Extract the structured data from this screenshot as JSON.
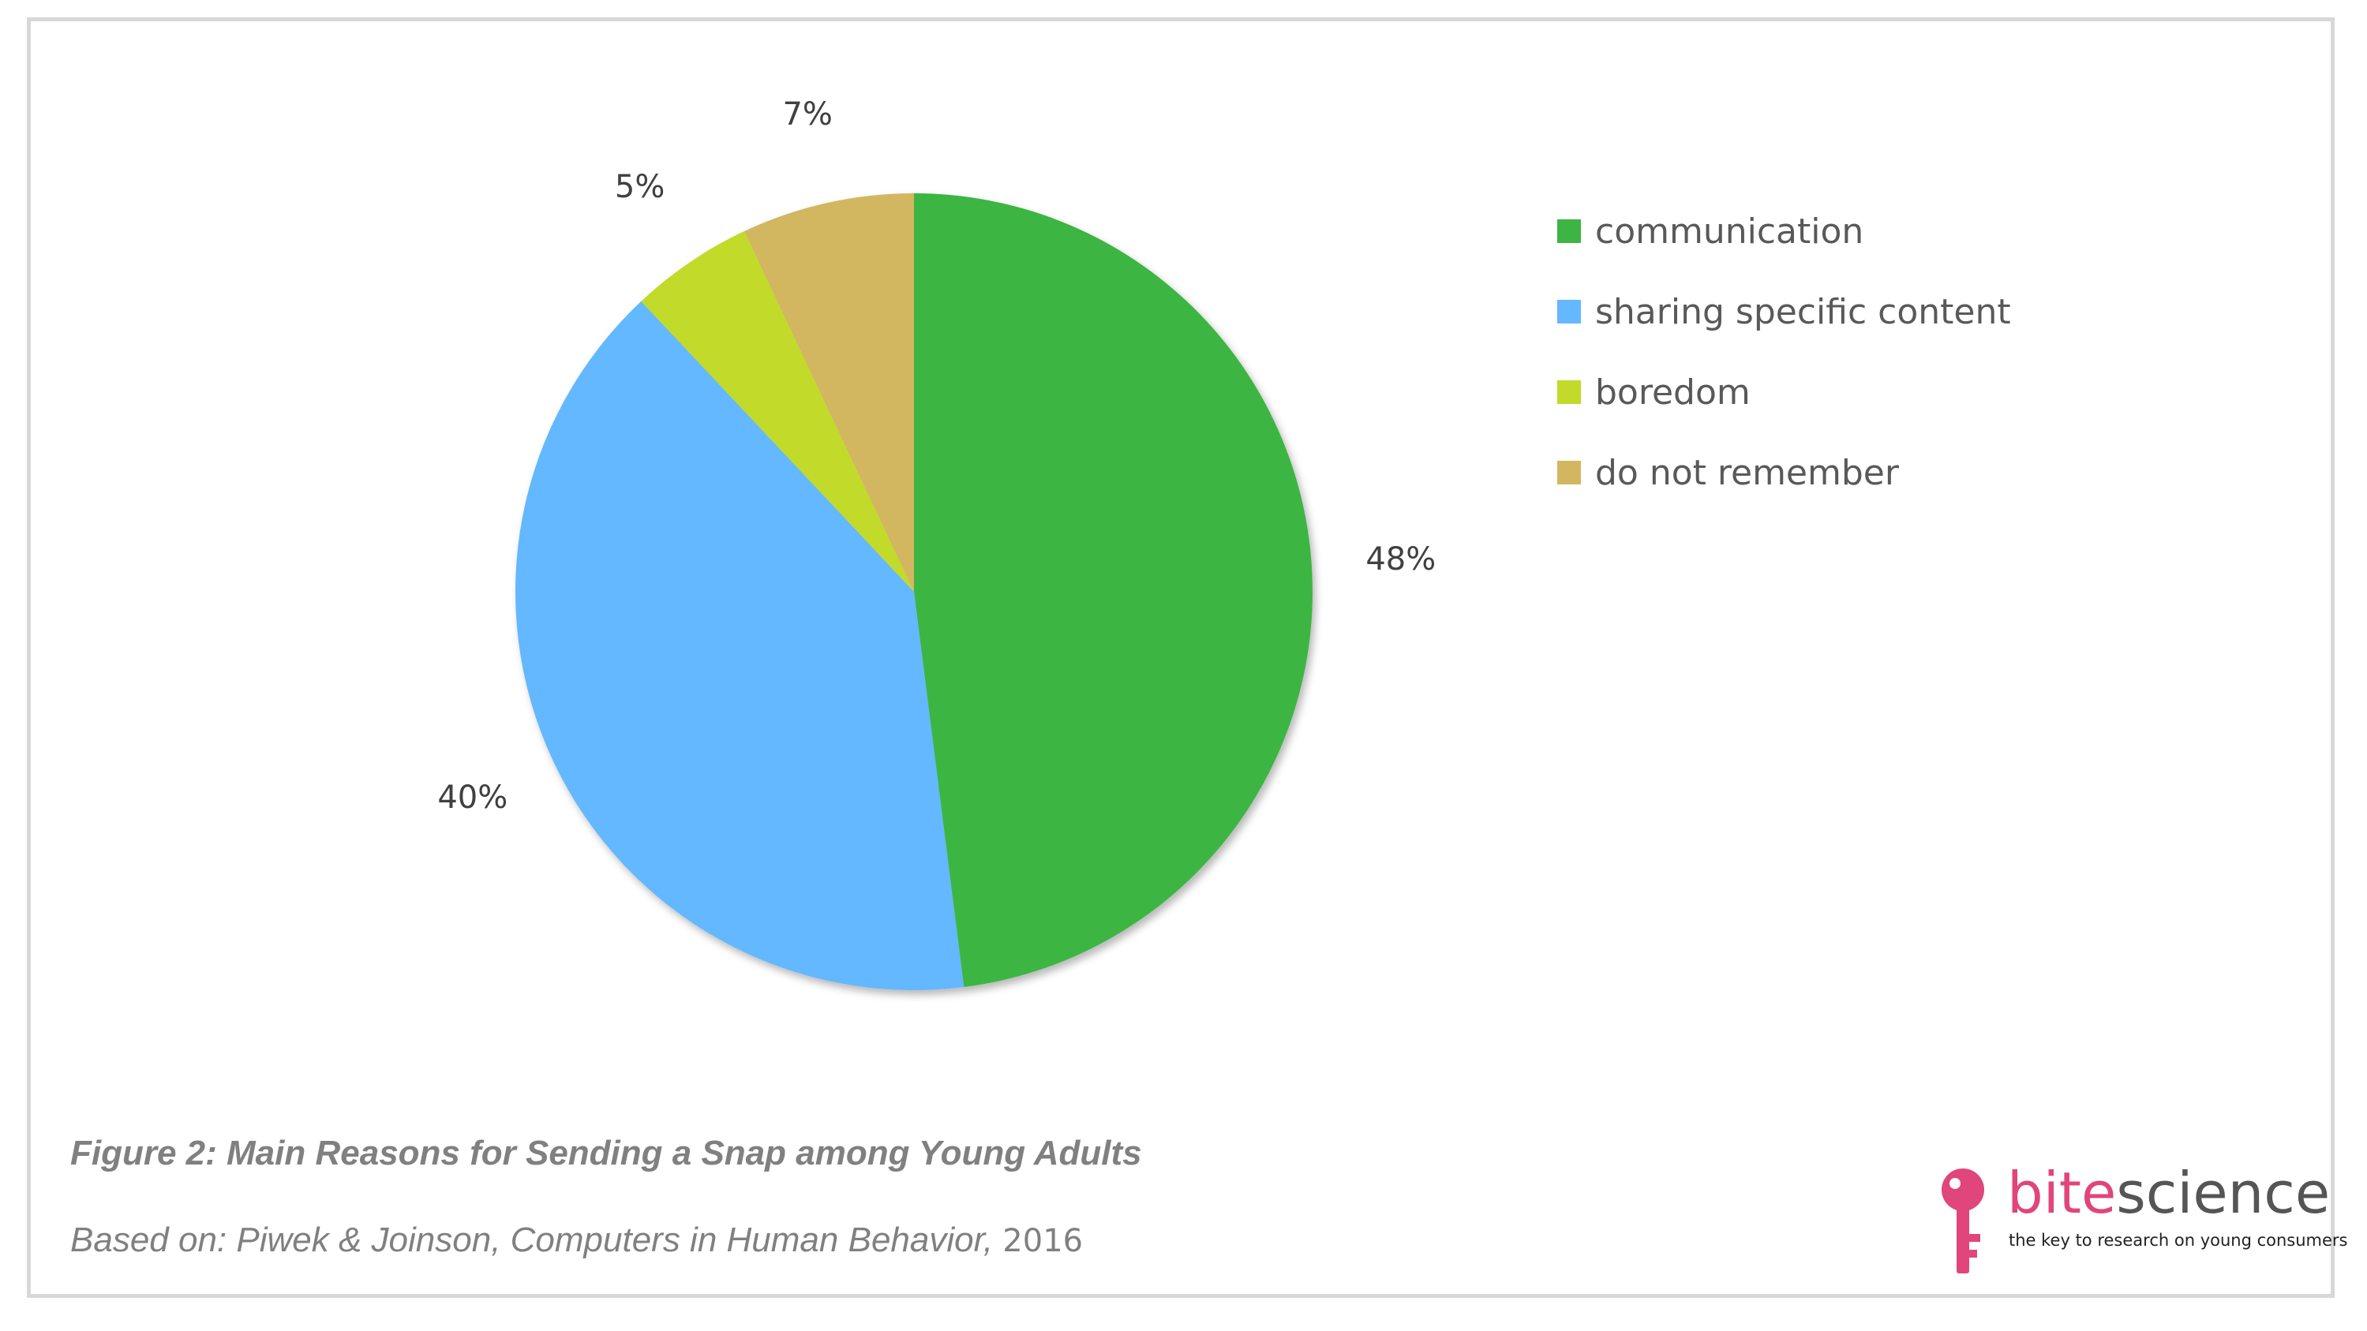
{
  "chart_data": {
    "type": "pie",
    "categories": [
      "communication",
      "sharing specific content",
      "boredom",
      "do not remember"
    ],
    "values": [
      48,
      40,
      5,
      7
    ],
    "labels": [
      "48%",
      "40%",
      "5%",
      "7%"
    ],
    "colors": [
      "#3db543",
      "#63b8ff",
      "#c2da2a",
      "#d3b660"
    ],
    "legend_position": "right",
    "start_angle": "top",
    "direction": "clockwise"
  },
  "caption": {
    "title": "Figure 2: Main Reasons for Sending a Snap among Young Adults",
    "source_text": "Based on: Piwek & Joinson, Computers in Human Behavior,",
    "source_year": "2016"
  },
  "brand": {
    "name_part1": "bite",
    "name_part2": "science",
    "tagline": "the key to research on young consumers",
    "logo_icon": "key-icon",
    "logo_color": "#e0457b"
  }
}
